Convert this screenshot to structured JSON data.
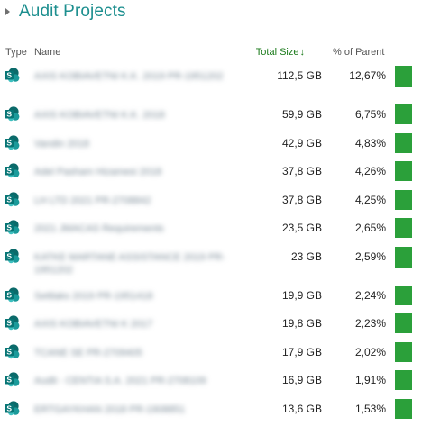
{
  "section": {
    "title": "Audit Projects"
  },
  "columns": {
    "type": "Type",
    "name": "Name",
    "size": "Total Size",
    "size_sort_indicator": "↓",
    "pct": "% of Parent"
  },
  "icon": "sharepoint-site-icon",
  "accent_color": "#2ba03a",
  "rows": [
    {
      "name": "AXIS KOBIAVETNI K.K. 2019 PR-1951202",
      "size": "112,5 GB",
      "pct": "12,67%",
      "tall": true
    },
    {
      "name": "AXIS KOBIAVETNI K.K. 2018",
      "size": "59,9 GB",
      "pct": "6,75%",
      "tall": false
    },
    {
      "name": "Vandin 2018",
      "size": "42,9 GB",
      "pct": "4,83%",
      "tall": false
    },
    {
      "name": "Adel Pasham Hizamesi 2018",
      "size": "37,8 GB",
      "pct": "4,26%",
      "tall": false
    },
    {
      "name": "LH LTD 2021 PR-2708842",
      "size": "37,8 GB",
      "pct": "4,25%",
      "tall": false
    },
    {
      "name": "2021 JMACAS Requirements",
      "size": "23,5 GB",
      "pct": "2,65%",
      "tall": false
    },
    {
      "name": "KATKE MARTANE ASSISTANCE 2019 PR-1951202",
      "size": "23 GB",
      "pct": "2,59%",
      "tall": true
    },
    {
      "name": "Settlaks 2019 PR-1951418",
      "size": "19,9 GB",
      "pct": "2,24%",
      "tall": false
    },
    {
      "name": "AXIS KOBIAVETNI K 2017",
      "size": "19,8 GB",
      "pct": "2,23%",
      "tall": false
    },
    {
      "name": "TCANE SE PR-2709405",
      "size": "17,9 GB",
      "pct": "2,02%",
      "tall": false
    },
    {
      "name": "Audit - CENTIA S.A. 2021 PR-2708109",
      "size": "16,9 GB",
      "pct": "1,91%",
      "tall": false
    },
    {
      "name": "ERTGAYKHAN 2018 PR-1908851",
      "size": "13,6 GB",
      "pct": "1,53%",
      "tall": false
    }
  ]
}
